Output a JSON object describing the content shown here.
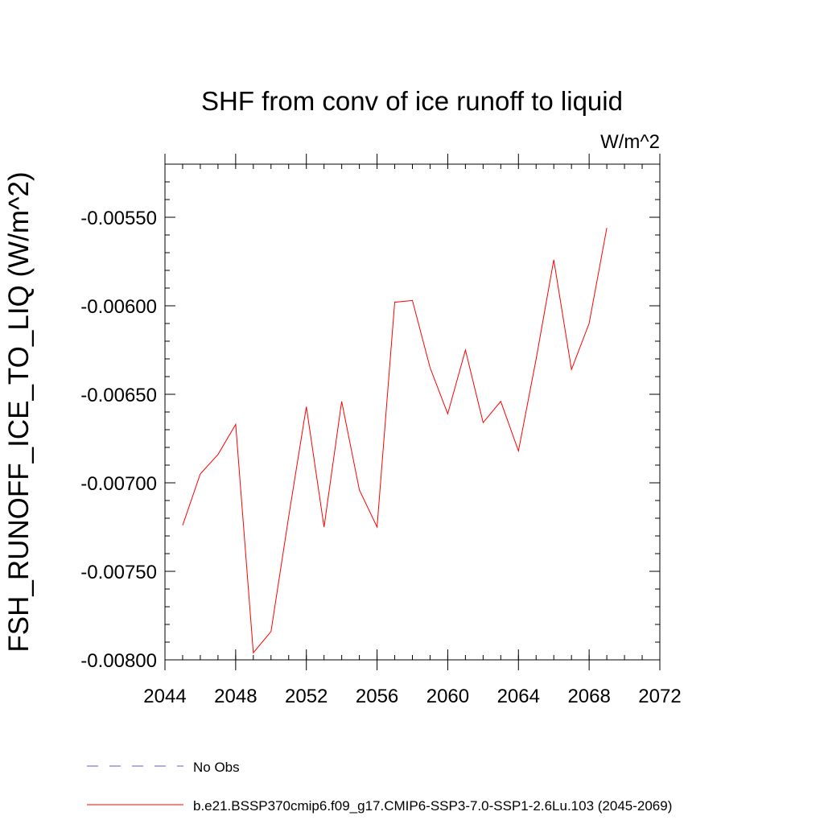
{
  "chart_data": {
    "type": "line",
    "title": "SHF from conv of ice runoff to liquid",
    "units_label": "W/m^2",
    "xlabel": "",
    "ylabel": "FSH_RUNOFF_ICE_TO_LIQ  (W/m^2)",
    "xlim": [
      2044,
      2072
    ],
    "ylim": [
      -0.008,
      -0.0052
    ],
    "x_ticks": [
      2044,
      2048,
      2052,
      2056,
      2060,
      2064,
      2068,
      2072
    ],
    "y_ticks": [
      -0.008,
      -0.0075,
      -0.007,
      -0.0065,
      -0.006,
      -0.0055
    ],
    "y_tick_labels": [
      "-0.00800",
      "-0.00750",
      "-0.00700",
      "-0.00650",
      "-0.00600",
      "-0.00550"
    ],
    "grid": false,
    "legend_position": "bottom",
    "series": [
      {
        "name": "b.e21.BSSP370cmip6.f09_g17.CMIP6-SSP3-7.0-SSP1-2.6Lu.103 (2045-2069)",
        "color": "#ff0000",
        "dash": "solid",
        "x": [
          2045,
          2046,
          2047,
          2048,
          2049,
          2050,
          2051,
          2052,
          2053,
          2054,
          2055,
          2056,
          2057,
          2058,
          2059,
          2060,
          2061,
          2062,
          2063,
          2064,
          2065,
          2066,
          2067,
          2068,
          2069
        ],
        "values": [
          -0.00724,
          -0.00695,
          -0.00684,
          -0.00667,
          -0.00796,
          -0.00784,
          -0.00719,
          -0.00657,
          -0.00725,
          -0.00654,
          -0.00704,
          -0.00725,
          -0.00598,
          -0.00597,
          -0.00635,
          -0.00661,
          -0.00625,
          -0.00666,
          -0.00654,
          -0.00682,
          -0.0063,
          -0.00574,
          -0.00636,
          -0.0061,
          -0.00556
        ]
      }
    ],
    "legend": [
      {
        "label": "No Obs",
        "color": "#6a5acd",
        "dash": "dashed"
      },
      {
        "label": "b.e21.BSSP370cmip6.f09_g17.CMIP6-SSP3-7.0-SSP1-2.6Lu.103 (2045-2069)",
        "color": "#ff0000",
        "dash": "solid"
      }
    ]
  }
}
